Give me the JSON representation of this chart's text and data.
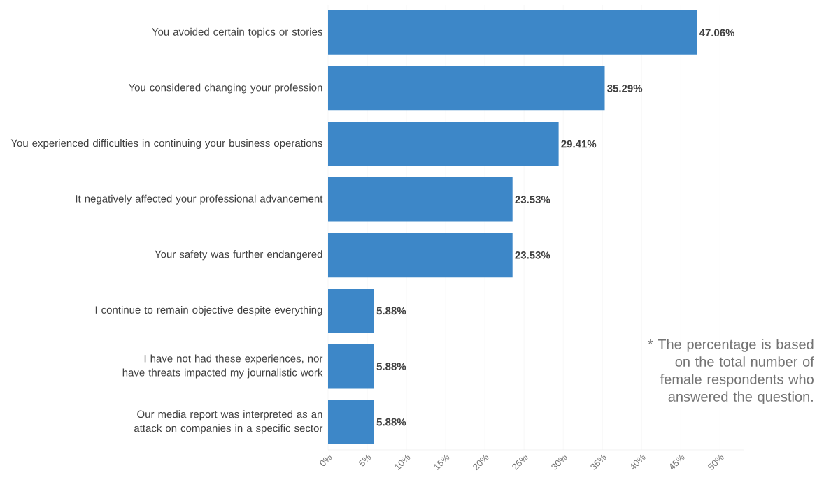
{
  "chart_data": {
    "type": "bar",
    "orientation": "horizontal",
    "categories": [
      "You avoided certain topics or stories",
      "You considered changing your profession",
      "You experienced difficulties in continuing your business operations",
      "It negatively affected your professional advancement",
      "Your safety was further endangered",
      "I continue to remain objective despite everything",
      "I have not had these experiences, nor have threats impacted my journalistic work",
      "Our media report was interpreted as an attack on companies in a specific sector"
    ],
    "values": [
      47.06,
      35.29,
      29.41,
      23.53,
      23.53,
      5.88,
      5.88,
      5.88
    ],
    "value_labels": [
      "47.06%",
      "35.29%",
      "29.41%",
      "23.53%",
      "23.53%",
      "5.88%",
      "5.88%",
      "5.88%"
    ],
    "color": "#3d87c8",
    "xlim": [
      0,
      53
    ],
    "xticks": [
      {
        "value": 0,
        "label": "0%"
      },
      {
        "value": 5,
        "label": "5%"
      },
      {
        "value": 10,
        "label": "10%"
      },
      {
        "value": 15,
        "label": "15%"
      },
      {
        "value": 20,
        "label": "20%"
      },
      {
        "value": 25,
        "label": "25%"
      },
      {
        "value": 30,
        "label": "30%"
      },
      {
        "value": 35,
        "label": "35%"
      },
      {
        "value": 40,
        "label": "40%"
      },
      {
        "value": 45,
        "label": "45%"
      },
      {
        "value": 50,
        "label": "50%"
      }
    ],
    "grid": "x",
    "annotations": [
      "* The percentage is based on the total number of female respondents who answered the question."
    ]
  }
}
